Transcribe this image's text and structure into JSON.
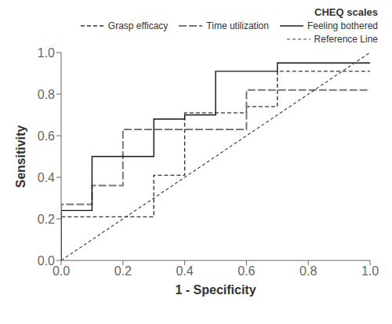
{
  "chart_data": {
    "type": "line",
    "title": "",
    "xlabel": "1 - Specificity",
    "ylabel": "Sensitivity",
    "legend_title": "CHEQ scales",
    "legend": "upper right",
    "grid": false,
    "xlim": [
      0.0,
      1.0
    ],
    "ylim": [
      0.0,
      1.0
    ],
    "xticks": [
      {
        "value": 0,
        "label": "0.0"
      },
      {
        "value": 0.2,
        "label": "0.2"
      },
      {
        "value": 0.4,
        "label": "0.4"
      },
      {
        "value": 0.6,
        "label": "0.6"
      },
      {
        "value": 0.8,
        "label": "0.8"
      },
      {
        "value": 1.0,
        "label": "1.0"
      }
    ],
    "yticks": [
      {
        "value": 0,
        "label": "0.0"
      },
      {
        "value": 0.2,
        "label": "0.2"
      },
      {
        "value": 0.4,
        "label": "0.4"
      },
      {
        "value": 0.6,
        "label": "0.6"
      },
      {
        "value": 0.8,
        "label": "0.8"
      },
      {
        "value": 1.0,
        "label": "1.0"
      }
    ],
    "series": [
      {
        "name": "Grasp efficacy",
        "color": "#333333",
        "line_style": "dashed",
        "x": [
          0.0,
          0.0,
          0.1,
          0.1,
          0.3,
          0.3,
          0.4,
          0.4,
          0.6,
          0.6,
          0.7,
          0.7,
          1.0
        ],
        "values": [
          0.0,
          0.21,
          0.21,
          0.21,
          0.21,
          0.41,
          0.41,
          0.71,
          0.71,
          0.74,
          0.74,
          0.91,
          0.91
        ]
      },
      {
        "name": "Time utilization",
        "color": "#777777",
        "line_style": "long-dashed",
        "x": [
          0.0,
          0.0,
          0.1,
          0.1,
          0.2,
          0.2,
          0.3,
          0.3,
          0.6,
          0.6,
          0.7,
          0.7,
          1.0
        ],
        "values": [
          0.0,
          0.27,
          0.27,
          0.36,
          0.36,
          0.63,
          0.63,
          0.63,
          0.63,
          0.82,
          0.82,
          0.82,
          0.82
        ]
      },
      {
        "name": "Feeling bothered",
        "color": "#111111",
        "line_style": "solid",
        "x": [
          0.0,
          0.0,
          0.1,
          0.1,
          0.3,
          0.3,
          0.4,
          0.4,
          0.5,
          0.5,
          0.7,
          0.7,
          1.0
        ],
        "values": [
          0.0,
          0.24,
          0.24,
          0.5,
          0.5,
          0.68,
          0.68,
          0.7,
          0.7,
          0.91,
          0.91,
          0.95,
          0.95
        ]
      },
      {
        "name": "Reference Line",
        "color": "#444444",
        "line_style": "short-dashed",
        "x": [
          0.0,
          1.0
        ],
        "values": [
          0.0,
          1.0
        ]
      }
    ]
  }
}
